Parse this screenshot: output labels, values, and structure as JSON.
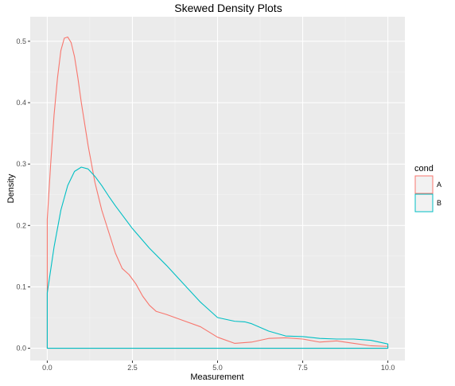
{
  "chart_data": {
    "type": "area",
    "title": "Skewed Density Plots",
    "xlabel": "Measurement",
    "ylabel": "Density",
    "xlim": [
      -0.5,
      10.5
    ],
    "ylim": [
      -0.02,
      0.54
    ],
    "x_ticks": [
      0.0,
      2.5,
      5.0,
      7.5,
      10.0
    ],
    "x_tick_labels": [
      "0.0",
      "2.5",
      "5.0",
      "7.5",
      "10.0"
    ],
    "y_ticks": [
      0.0,
      0.1,
      0.2,
      0.3,
      0.4,
      0.5
    ],
    "y_tick_labels": [
      "0.0",
      "0.1",
      "0.2",
      "0.3",
      "0.4",
      "0.5"
    ],
    "grid": true,
    "legend": {
      "title": "cond",
      "placement": "right",
      "items": [
        {
          "label": "A",
          "color": "#f8766d"
        },
        {
          "label": "B",
          "color": "#00bfc4"
        }
      ]
    },
    "series": [
      {
        "name": "A",
        "color": "#f8766d",
        "fill": "none",
        "x": [
          0.0,
          0.1,
          0.2,
          0.3,
          0.4,
          0.5,
          0.6,
          0.7,
          0.8,
          0.9,
          1.0,
          1.2,
          1.4,
          1.6,
          1.8,
          2.0,
          2.2,
          2.4,
          2.6,
          2.8,
          3.0,
          3.2,
          3.5,
          4.0,
          4.5,
          5.0,
          5.5,
          6.0,
          6.5,
          7.0,
          7.5,
          8.0,
          8.5,
          9.0,
          9.5,
          10.0
        ],
        "y": [
          0.21,
          0.3,
          0.38,
          0.44,
          0.485,
          0.505,
          0.507,
          0.498,
          0.475,
          0.44,
          0.4,
          0.33,
          0.27,
          0.225,
          0.19,
          0.155,
          0.13,
          0.12,
          0.105,
          0.085,
          0.07,
          0.06,
          0.055,
          0.045,
          0.035,
          0.018,
          0.008,
          0.01,
          0.016,
          0.017,
          0.015,
          0.01,
          0.012,
          0.008,
          0.004,
          0.003
        ]
      },
      {
        "name": "B",
        "color": "#00bfc4",
        "fill": "none",
        "x": [
          0.0,
          0.2,
          0.4,
          0.6,
          0.8,
          1.0,
          1.2,
          1.4,
          1.6,
          1.8,
          2.0,
          2.5,
          3.0,
          3.5,
          4.0,
          4.5,
          5.0,
          5.5,
          5.8,
          6.0,
          6.5,
          7.0,
          7.5,
          8.0,
          8.5,
          9.0,
          9.5,
          10.0
        ],
        "y": [
          0.09,
          0.165,
          0.225,
          0.265,
          0.288,
          0.295,
          0.292,
          0.28,
          0.265,
          0.248,
          0.232,
          0.195,
          0.163,
          0.135,
          0.105,
          0.075,
          0.05,
          0.044,
          0.043,
          0.04,
          0.028,
          0.02,
          0.019,
          0.016,
          0.015,
          0.015,
          0.013,
          0.007
        ]
      }
    ]
  }
}
